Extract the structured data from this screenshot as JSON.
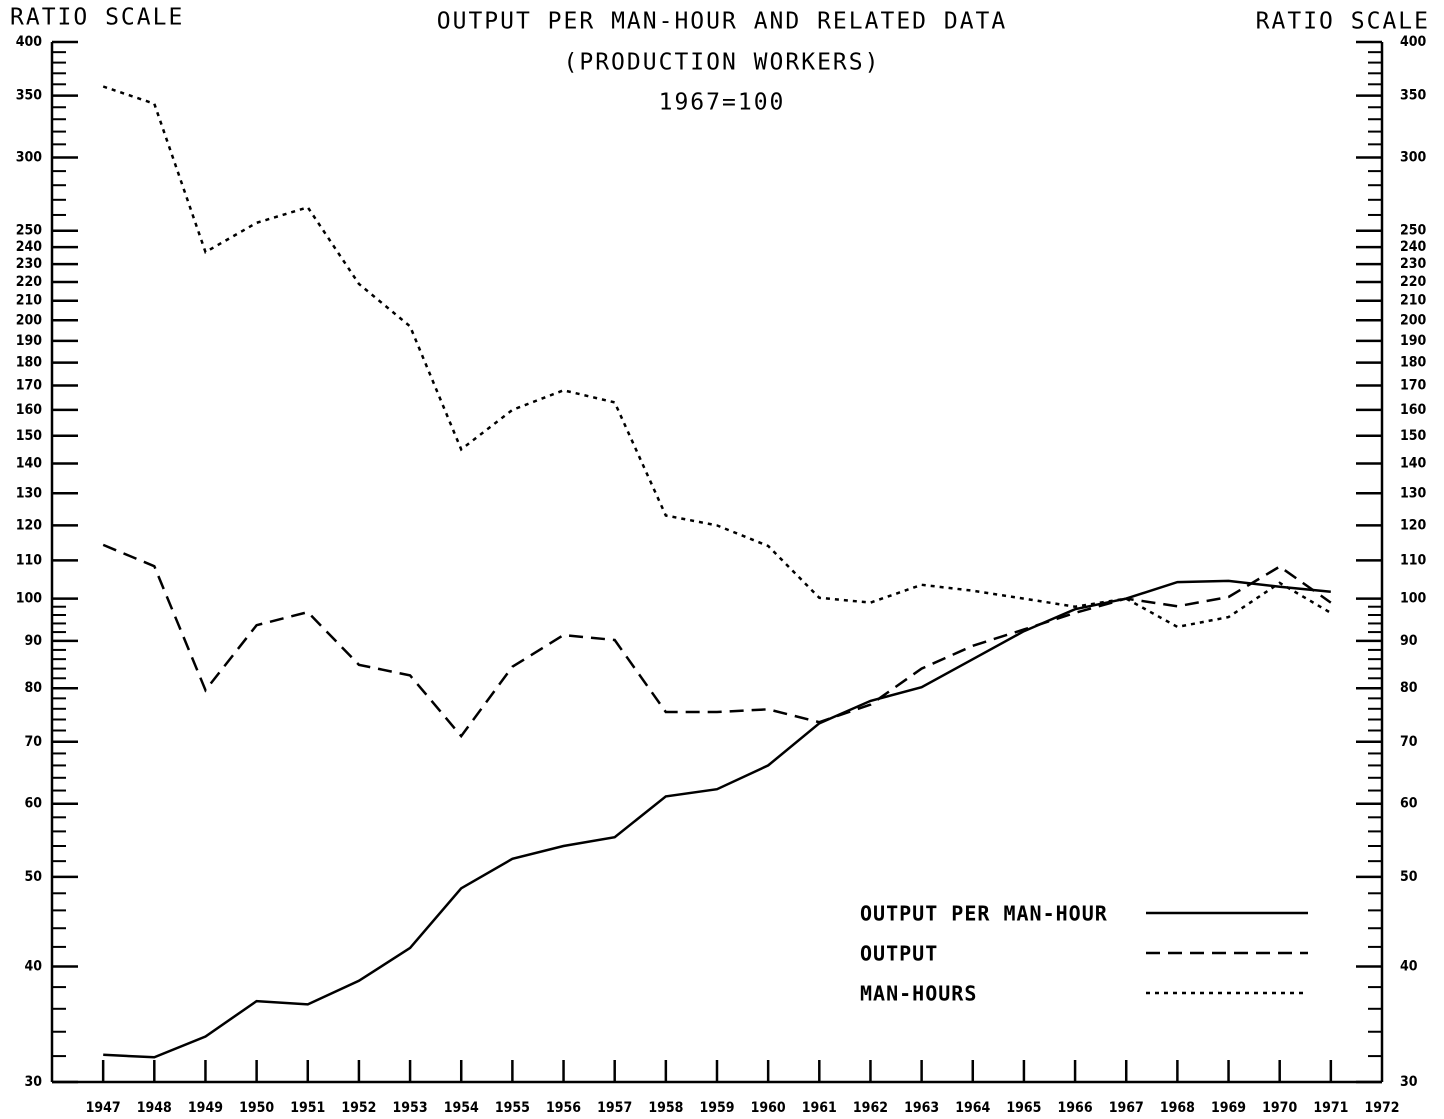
{
  "chart_data": {
    "type": "line",
    "title": "OUTPUT PER MAN-HOUR AND RELATED DATA",
    "subtitle": "(PRODUCTION WORKERS)",
    "note": "1967=100",
    "y_axis_label": "RATIO SCALE",
    "y2_axis_label": "RATIO SCALE",
    "log_scale": true,
    "x": [
      1947,
      1948,
      1949,
      1950,
      1951,
      1952,
      1953,
      1954,
      1955,
      1956,
      1957,
      1958,
      1959,
      1960,
      1961,
      1962,
      1963,
      1964,
      1965,
      1966,
      1967,
      1968,
      1969,
      1970,
      1971
    ],
    "xlim": [
      1946,
      1972
    ],
    "xticks": [
      1947,
      1948,
      1949,
      1950,
      1951,
      1952,
      1953,
      1954,
      1955,
      1956,
      1957,
      1958,
      1959,
      1960,
      1961,
      1962,
      1963,
      1964,
      1965,
      1966,
      1967,
      1968,
      1969,
      1970,
      1971,
      1972
    ],
    "ylim": [
      30,
      400
    ],
    "yticks": [
      30,
      40,
      50,
      60,
      70,
      80,
      90,
      100,
      110,
      120,
      130,
      140,
      150,
      160,
      170,
      180,
      190,
      200,
      210,
      220,
      230,
      240,
      250,
      300,
      350,
      400
    ],
    "minor_yticks": [
      32,
      34,
      36,
      38,
      42,
      44,
      46,
      48,
      52,
      54,
      56,
      58,
      62,
      64,
      66,
      68,
      72,
      74,
      76,
      78,
      82,
      84,
      86,
      88,
      92,
      94,
      96,
      98,
      260,
      270,
      280,
      290,
      310,
      320,
      330,
      340,
      360,
      370,
      380,
      390
    ],
    "series": [
      {
        "name": "OUTPUT PER MAN-HOUR",
        "color": "#000000",
        "dash": "solid",
        "values": [
          32.1,
          31.9,
          33.6,
          36.7,
          36.4,
          38.6,
          41.9,
          48.6,
          52.3,
          54.0,
          55.2,
          61.1,
          62.2,
          66.0,
          73.3,
          77.5,
          80.2,
          86.0,
          92.2,
          97.4,
          100,
          104.2,
          104.5,
          103,
          101.7
        ]
      },
      {
        "name": "OUTPUT",
        "color": "#000000",
        "dash": "dashed",
        "values": [
          114.3,
          108.4,
          79.6,
          93.6,
          96.7,
          84.8,
          82.6,
          71.0,
          84.4,
          91.3,
          90.2,
          75.4,
          75.4,
          75.9,
          73.5,
          76.8,
          84.0,
          88.9,
          92.6,
          96.5,
          100,
          98.1,
          100.4,
          108.3,
          99
        ]
      },
      {
        "name": "MAN-HOURS",
        "color": "#000000",
        "dash": "dotted",
        "values": [
          358,
          343,
          237,
          255,
          265,
          219,
          197,
          145,
          160,
          168,
          163,
          123,
          120,
          114,
          100.2,
          99,
          103.5,
          102,
          100,
          98,
          100,
          93.2,
          95.5,
          104,
          96.5
        ]
      }
    ]
  }
}
